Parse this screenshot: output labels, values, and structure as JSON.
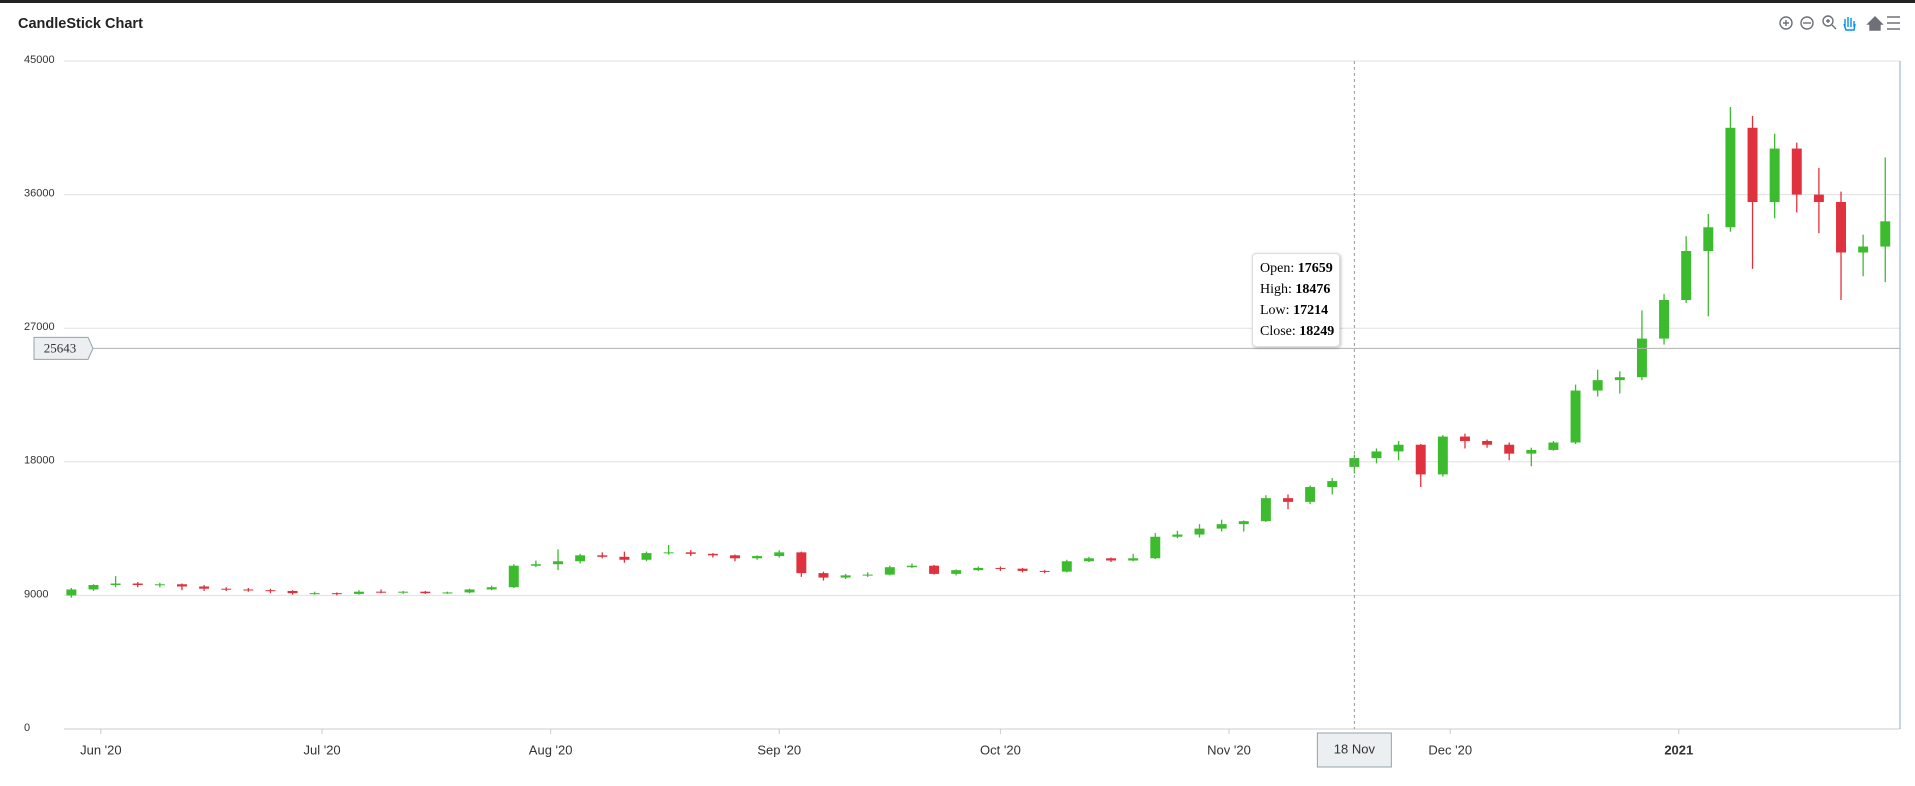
{
  "chart_data": {
    "type": "candlestick",
    "title": "CandleStick Chart",
    "up_color": "#3dbb2e",
    "down_color": "#e0313e",
    "grid": true,
    "ylim": [
      0,
      45000
    ],
    "yticks": [
      0,
      9000,
      18000,
      27000,
      36000,
      45000
    ],
    "xlim": [
      "2020-05-27",
      "2021-01-31"
    ],
    "xticks": [
      {
        "value": "2020-06-01",
        "label": "Jun '20"
      },
      {
        "value": "2020-07-01",
        "label": "Jul '20"
      },
      {
        "value": "2020-08-01",
        "label": "Aug '20"
      },
      {
        "value": "2020-09-01",
        "label": "Sep '20"
      },
      {
        "value": "2020-10-01",
        "label": "Oct '20"
      },
      {
        "value": "2020-11-01",
        "label": "Nov '20"
      },
      {
        "value": "2020-12-01",
        "label": "Dec '20"
      },
      {
        "value": "2021-01-01",
        "label": "2021"
      }
    ],
    "x": [
      "2020-05-28",
      "2020-05-31",
      "2020-06-03",
      "2020-06-06",
      "2020-06-09",
      "2020-06-12",
      "2020-06-15",
      "2020-06-18",
      "2020-06-21",
      "2020-06-24",
      "2020-06-27",
      "2020-06-30",
      "2020-07-03",
      "2020-07-06",
      "2020-07-09",
      "2020-07-12",
      "2020-07-15",
      "2020-07-18",
      "2020-07-21",
      "2020-07-24",
      "2020-07-27",
      "2020-07-30",
      "2020-08-02",
      "2020-08-05",
      "2020-08-08",
      "2020-08-11",
      "2020-08-14",
      "2020-08-17",
      "2020-08-20",
      "2020-08-23",
      "2020-08-26",
      "2020-08-29",
      "2020-09-01",
      "2020-09-04",
      "2020-09-07",
      "2020-09-10",
      "2020-09-13",
      "2020-09-16",
      "2020-09-19",
      "2020-09-22",
      "2020-09-25",
      "2020-09-28",
      "2020-10-01",
      "2020-10-04",
      "2020-10-07",
      "2020-10-10",
      "2020-10-13",
      "2020-10-16",
      "2020-10-19",
      "2020-10-22",
      "2020-10-25",
      "2020-10-28",
      "2020-10-31",
      "2020-11-03",
      "2020-11-06",
      "2020-11-09",
      "2020-11-12",
      "2020-11-15",
      "2020-11-18",
      "2020-11-21",
      "2020-11-24",
      "2020-11-27",
      "2020-11-30",
      "2020-12-03",
      "2020-12-06",
      "2020-12-09",
      "2020-12-12",
      "2020-12-15",
      "2020-12-18",
      "2020-12-21",
      "2020-12-24",
      "2020-12-27",
      "2020-12-30",
      "2021-01-02",
      "2021-01-05",
      "2021-01-08",
      "2021-01-11",
      "2021-01-14",
      "2021-01-17",
      "2021-01-20",
      "2021-01-23",
      "2021-01-26",
      "2021-01-29"
    ],
    "open": [
      9000,
      9400,
      9700,
      9800,
      9700,
      9750,
      9600,
      9450,
      9400,
      9350,
      9300,
      9150,
      9150,
      9100,
      9250,
      9200,
      9250,
      9150,
      9200,
      9400,
      9550,
      11000,
      11100,
      11300,
      11700,
      11600,
      11400,
      11850,
      11900,
      11800,
      11700,
      11500,
      11650,
      11900,
      10500,
      10200,
      10350,
      10400,
      10900,
      11000,
      10450,
      10700,
      10850,
      10800,
      10650,
      10600,
      11300,
      11500,
      11350,
      11500,
      12950,
      13100,
      13500,
      13800,
      14000,
      15550,
      15300,
      16300,
      17659,
      18249,
      18700,
      19150,
      17150,
      19700,
      19400,
      19150,
      18550,
      18800,
      19300,
      22800,
      23500,
      23700,
      26300,
      28900,
      32200,
      33800,
      40500,
      35500,
      39100,
      36000,
      35500,
      32100,
      32500
    ],
    "high": [
      9500,
      9750,
      10300,
      9900,
      9850,
      9800,
      9700,
      9550,
      9500,
      9450,
      9350,
      9250,
      9200,
      9350,
      9400,
      9300,
      9300,
      9250,
      9450,
      9650,
      11100,
      11350,
      12100,
      11800,
      11900,
      11950,
      11950,
      12400,
      12050,
      11850,
      11750,
      11700,
      12050,
      11950,
      10600,
      10450,
      10550,
      11000,
      11150,
      11050,
      10750,
      10950,
      10950,
      10850,
      10700,
      11400,
      11600,
      11550,
      11800,
      13200,
      13350,
      13800,
      14100,
      14050,
      15750,
      15800,
      16400,
      16900,
      18476,
      18900,
      19400,
      19200,
      19800,
      19900,
      19500,
      19300,
      18950,
      19400,
      23200,
      24200,
      24100,
      28200,
      29300,
      33200,
      34700,
      41900,
      41300,
      40100,
      39500,
      37800,
      36200,
      33300,
      38500
    ],
    "low": [
      8850,
      9300,
      9550,
      9550,
      9550,
      9350,
      9300,
      9300,
      9250,
      9150,
      9050,
      9050,
      9000,
      9050,
      9150,
      9100,
      9100,
      9100,
      9150,
      9350,
      9500,
      10900,
      10700,
      11150,
      11500,
      11200,
      11300,
      11750,
      11650,
      11550,
      11300,
      11400,
      11550,
      10250,
      10000,
      10100,
      10250,
      10350,
      10850,
      10400,
      10350,
      10650,
      10650,
      10550,
      10500,
      10550,
      11250,
      11250,
      11300,
      11450,
      12850,
      12900,
      13300,
      13300,
      13950,
      14800,
      15150,
      15800,
      17214,
      17900,
      18100,
      16300,
      17000,
      18900,
      18950,
      18100,
      17700,
      18750,
      19200,
      22400,
      22600,
      23500,
      25900,
      28700,
      27800,
      33500,
      31000,
      34400,
      34800,
      33400,
      28900,
      30500,
      30100
    ],
    "close": [
      9400,
      9700,
      9800,
      9700,
      9750,
      9600,
      9450,
      9400,
      9350,
      9300,
      9150,
      9150,
      9100,
      9250,
      9200,
      9250,
      9150,
      9200,
      9400,
      9550,
      11000,
      11100,
      11300,
      11700,
      11600,
      11400,
      11850,
      11900,
      11800,
      11700,
      11500,
      11650,
      11900,
      10500,
      10200,
      10350,
      10400,
      10900,
      11000,
      10450,
      10700,
      10850,
      10800,
      10650,
      10600,
      11300,
      11500,
      11350,
      11500,
      12950,
      13100,
      13500,
      13800,
      14000,
      15550,
      15300,
      16300,
      16700,
      18249,
      18700,
      19150,
      17150,
      19700,
      19400,
      19150,
      18550,
      18800,
      19300,
      22800,
      23500,
      23700,
      26300,
      28900,
      32200,
      33800,
      40500,
      35500,
      39100,
      36000,
      35500,
      32100,
      32500,
      34200
    ],
    "crosshair_value": 25643,
    "crosshair_x_label": "18 Nov",
    "tooltip_labels": [
      "Open:",
      "High:",
      "Low:",
      "Close:"
    ]
  }
}
